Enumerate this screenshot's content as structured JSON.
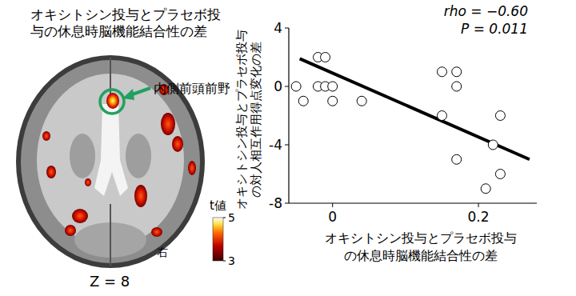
{
  "chart_data": [
    {
      "type": "image",
      "title": [
        "オキシトシン投与とプラセボ投",
        "与の休息時脳機能結合性の差"
      ],
      "annotations": [
        "内側前頭前野",
        "右",
        "Z = 8"
      ],
      "colorbar": {
        "label": "t値",
        "range": [
          3,
          5
        ],
        "ticks": [
          3,
          5
        ]
      }
    },
    {
      "type": "scatter",
      "x": [
        -0.05,
        -0.04,
        -0.02,
        -0.01,
        -0.02,
        -0.01,
        0,
        0,
        0.04,
        0.15,
        0.17,
        0.17,
        0.15,
        0.17,
        0.21,
        0.22,
        0.23,
        0.23
      ],
      "values": [
        0,
        -1,
        2,
        2,
        0,
        0,
        0,
        -1,
        -1,
        1,
        1,
        0,
        -2,
        -5,
        -7,
        -4,
        -6,
        -2
      ],
      "xlim": [
        -0.06,
        0.28
      ],
      "xticks": [
        0,
        0.2
      ],
      "ylim": [
        -8,
        4
      ],
      "yticks": [
        -8,
        -4,
        0,
        4
      ],
      "x_label": [
        "オキシトシン投与とプラセボ投与",
        "の休息時脳機能結合性の差"
      ],
      "y_label": [
        "オキシトシン投与とプラセボ投与",
        "の対人相互作用得点変化の差"
      ],
      "annotations": [
        "rho = −0.60",
        "P = 0.011"
      ],
      "trendline": {
        "x": [
          -0.045,
          0.27
        ],
        "values": [
          1.9,
          -5.0
        ]
      },
      "marker": "circle",
      "color": "#000000"
    }
  ]
}
